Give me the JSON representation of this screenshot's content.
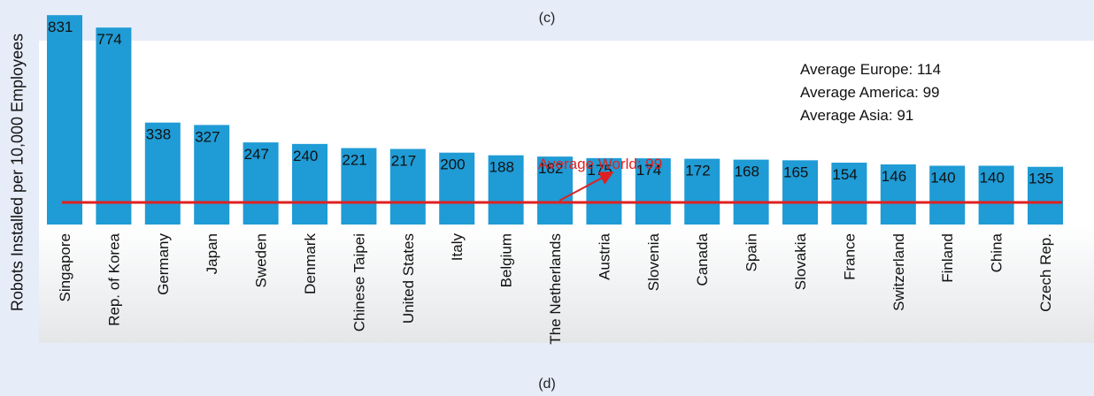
{
  "captions": {
    "top": "(c)",
    "bottom": "(d)"
  },
  "chart_data": {
    "type": "bar",
    "ylabel": "Robots Installed per 10,000 Employees",
    "categories": [
      "Singapore",
      "Rep. of Korea",
      "Germany",
      "Japan",
      "Sweden",
      "Denmark",
      "Chinese Taipei",
      "United States",
      "Italy",
      "Belgium",
      "The Netherlands",
      "Austria",
      "Slovenia",
      "Canada",
      "Spain",
      "Slovakia",
      "France",
      "Switzerland",
      "Finland",
      "China",
      "Czech Rep."
    ],
    "values": [
      831,
      774,
      338,
      327,
      247,
      240,
      221,
      217,
      200,
      188,
      182,
      175,
      174,
      172,
      168,
      165,
      154,
      146,
      140,
      140,
      135
    ],
    "reference_line": {
      "label": "Average World: 99",
      "value": 99,
      "color": "#e02020"
    },
    "annotations": [
      "Average Europe: 114",
      "Average America: 99",
      "Average Asia: 91"
    ],
    "bar_color": "#1f9bd5"
  }
}
